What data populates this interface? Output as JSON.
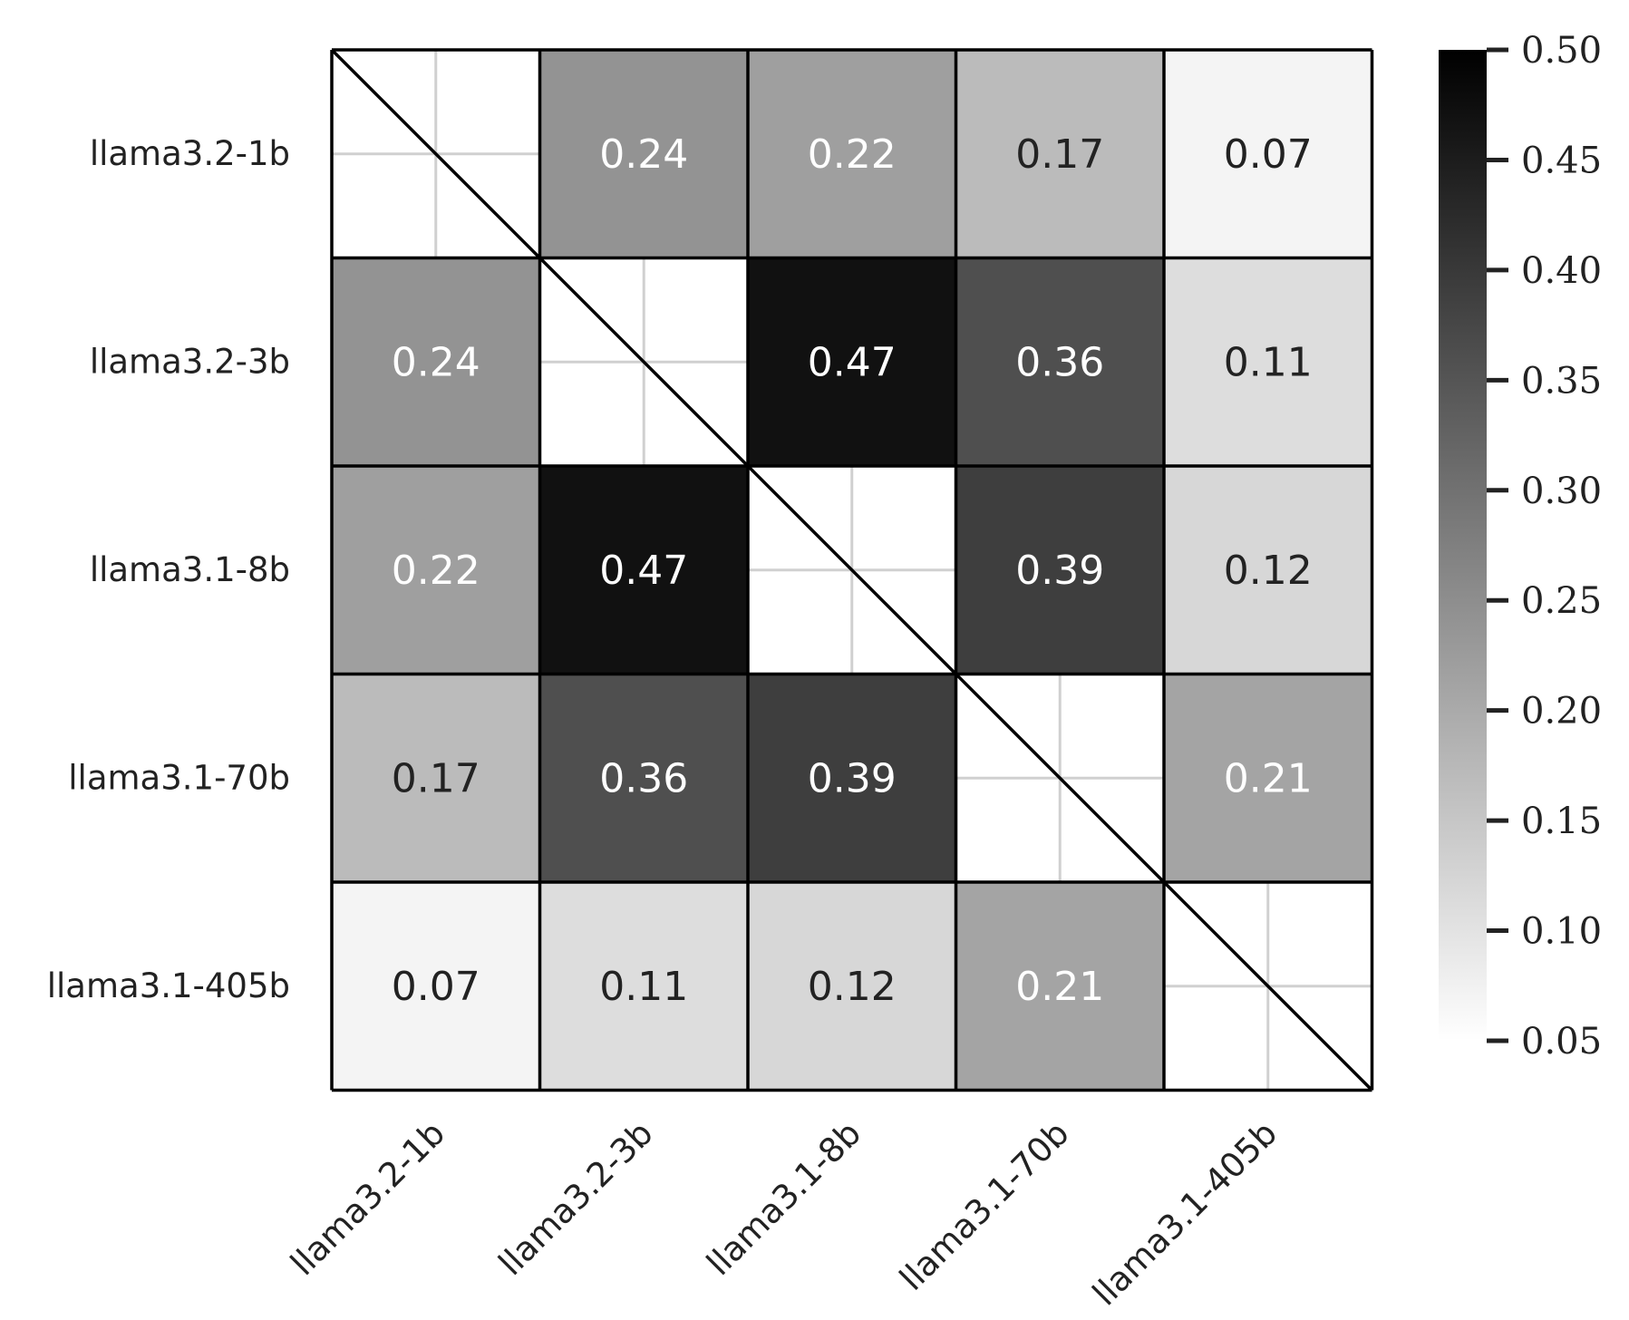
{
  "chart_data": {
    "type": "heatmap",
    "title": "",
    "xlabel": "",
    "ylabel": "",
    "row_labels": [
      "llama3.2-1b",
      "llama3.2-3b",
      "llama3.1-8b",
      "llama3.1-70b",
      "llama3.1-405b"
    ],
    "col_labels": [
      "llama3.2-1b",
      "llama3.2-3b",
      "llama3.1-8b",
      "llama3.1-70b",
      "llama3.1-405b"
    ],
    "values": [
      [
        null,
        0.24,
        0.22,
        0.17,
        0.07
      ],
      [
        0.24,
        null,
        0.47,
        0.36,
        0.11
      ],
      [
        0.22,
        0.47,
        null,
        0.39,
        0.12
      ],
      [
        0.17,
        0.36,
        0.39,
        null,
        0.21
      ],
      [
        0.07,
        0.11,
        0.12,
        0.21,
        null
      ]
    ],
    "cell_text": [
      [
        "",
        "0.24",
        "0.22",
        "0.17",
        "0.07"
      ],
      [
        "0.24",
        "",
        "0.47",
        "0.36",
        "0.11"
      ],
      [
        "0.22",
        "0.47",
        "",
        "0.39",
        "0.12"
      ],
      [
        "0.17",
        "0.36",
        "0.39",
        "",
        "0.21"
      ],
      [
        "0.07",
        "0.11",
        "0.12",
        "0.21",
        ""
      ]
    ],
    "colorbar": {
      "range": [
        0.05,
        0.5
      ],
      "ticks": [
        0.05,
        0.1,
        0.15,
        0.2,
        0.25,
        0.3,
        0.35,
        0.4,
        0.45,
        0.5
      ],
      "tick_labels": [
        "0.05",
        "0.10",
        "0.15",
        "0.20",
        "0.25",
        "0.30",
        "0.35",
        "0.40",
        "0.45",
        "0.50"
      ],
      "colormap": "Greys",
      "position": "right"
    },
    "diagonal": "masked",
    "colors": {
      "low": "#ffffff",
      "high": "#000000",
      "text_dark": "#222222",
      "text_light": "#ffffff"
    }
  }
}
